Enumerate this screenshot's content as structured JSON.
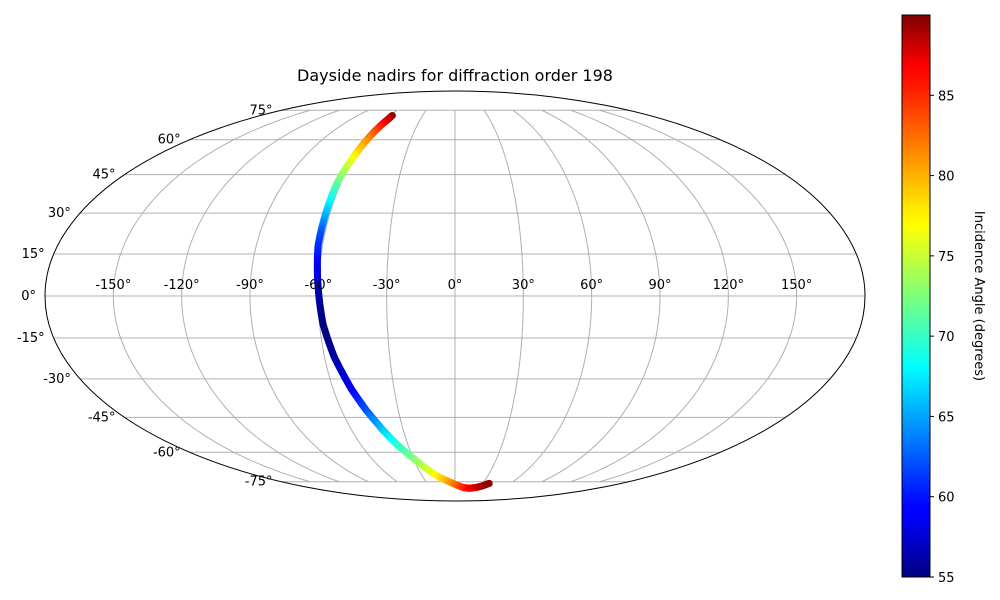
{
  "chart_data": {
    "type": "scatter",
    "projection": "mollweide",
    "title": "Dayside nadirs for diffraction order 198",
    "lon_ticks": [
      "-150°",
      "-120°",
      "-90°",
      "-60°",
      "-30°",
      "0°",
      "30°",
      "60°",
      "90°",
      "120°",
      "150°"
    ],
    "lat_ticks": [
      "75°",
      "60°",
      "45°",
      "30°",
      "15°",
      "0°",
      "-15°",
      "-30°",
      "-45°",
      "-60°",
      "-75°"
    ],
    "lon_range": [
      -180,
      180
    ],
    "lat_range": [
      -90,
      90
    ],
    "grid": true,
    "colorbar": {
      "label": "Incidence Angle (degrees)",
      "colormap": "jet",
      "range": [
        55,
        90
      ],
      "ticks": [
        "55",
        "60",
        "65",
        "70",
        "75",
        "80",
        "85"
      ],
      "tick_values": [
        55,
        60,
        65,
        70,
        75,
        80,
        85
      ]
    },
    "points": [
      {
        "lon": -58,
        "lat": 72,
        "incidence": 89.5
      },
      {
        "lon": -58,
        "lat": 70,
        "incidence": 88
      },
      {
        "lon": -58.5,
        "lat": 68,
        "incidence": 86
      },
      {
        "lon": -59,
        "lat": 65,
        "incidence": 84
      },
      {
        "lon": -59.5,
        "lat": 62,
        "incidence": 82
      },
      {
        "lon": -60,
        "lat": 58,
        "incidence": 80
      },
      {
        "lon": -60.5,
        "lat": 54,
        "incidence": 78
      },
      {
        "lon": -61,
        "lat": 50,
        "incidence": 76
      },
      {
        "lon": -61.5,
        "lat": 46,
        "incidence": 74
      },
      {
        "lon": -62,
        "lat": 42,
        "incidence": 72
      },
      {
        "lon": -62,
        "lat": 38,
        "incidence": 70
      },
      {
        "lon": -62,
        "lat": 34,
        "incidence": 68
      },
      {
        "lon": -62,
        "lat": 30,
        "incidence": 66
      },
      {
        "lon": -62,
        "lat": 26,
        "incidence": 64
      },
      {
        "lon": -62,
        "lat": 22,
        "incidence": 62
      },
      {
        "lon": -62,
        "lat": 18,
        "incidence": 61
      },
      {
        "lon": -61.5,
        "lat": 14,
        "incidence": 60
      },
      {
        "lon": -61,
        "lat": 10,
        "incidence": 59
      },
      {
        "lon": -60.5,
        "lat": 6,
        "incidence": 58
      },
      {
        "lon": -60,
        "lat": 2,
        "incidence": 57
      },
      {
        "lon": -59.5,
        "lat": -2,
        "incidence": 56
      },
      {
        "lon": -59,
        "lat": -6,
        "incidence": 55.5
      },
      {
        "lon": -58.5,
        "lat": -10,
        "incidence": 55.2
      },
      {
        "lon": -57.5,
        "lat": -14,
        "incidence": 55.2
      },
      {
        "lon": -56.5,
        "lat": -18,
        "incidence": 55.5
      },
      {
        "lon": -55.5,
        "lat": -22,
        "incidence": 56
      },
      {
        "lon": -54,
        "lat": -26,
        "incidence": 57
      },
      {
        "lon": -52.5,
        "lat": -30,
        "incidence": 58
      },
      {
        "lon": -51,
        "lat": -34,
        "incidence": 59
      },
      {
        "lon": -49,
        "lat": -38,
        "incidence": 60.5
      },
      {
        "lon": -47,
        "lat": -42,
        "incidence": 62
      },
      {
        "lon": -44.5,
        "lat": -46,
        "incidence": 64
      },
      {
        "lon": -42,
        "lat": -50,
        "incidence": 66
      },
      {
        "lon": -39,
        "lat": -54,
        "incidence": 68
      },
      {
        "lon": -35.5,
        "lat": -58,
        "incidence": 70
      },
      {
        "lon": -31,
        "lat": -62,
        "incidence": 72
      },
      {
        "lon": -26,
        "lat": -66,
        "incidence": 74
      },
      {
        "lon": -20,
        "lat": -70,
        "incidence": 76
      },
      {
        "lon": -13,
        "lat": -73,
        "incidence": 78
      },
      {
        "lon": -6,
        "lat": -75,
        "incidence": 80
      },
      {
        "lon": 2,
        "lat": -77,
        "incidence": 82
      },
      {
        "lon": 10,
        "lat": -78.5,
        "incidence": 84
      },
      {
        "lon": 18,
        "lat": -79,
        "incidence": 85.5
      },
      {
        "lon": 26,
        "lat": -78.5,
        "incidence": 87
      },
      {
        "lon": 32,
        "lat": -77.5,
        "incidence": 88.5
      },
      {
        "lon": 37,
        "lat": -76,
        "incidence": 89.5
      }
    ]
  }
}
